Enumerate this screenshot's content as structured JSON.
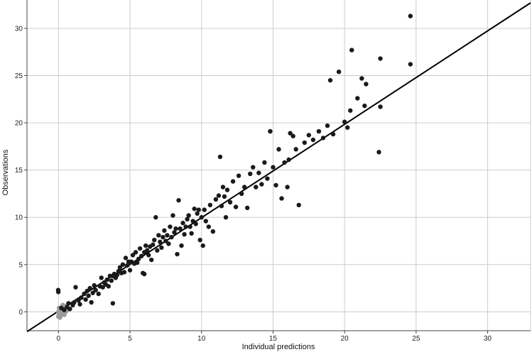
{
  "chart_data": {
    "type": "scatter",
    "title": "",
    "xlabel": "Individual predictions",
    "ylabel": "Observations",
    "xlim": [
      -2.2,
      33
    ],
    "ylim": [
      -2,
      33
    ],
    "xticks": [
      0,
      5,
      10,
      15,
      20,
      25,
      30
    ],
    "yticks": [
      0,
      5,
      10,
      15,
      20,
      25,
      30
    ],
    "grid": true,
    "identity_line": {
      "from": [
        -2.2,
        -2.1
      ],
      "to": [
        33,
        32.7
      ]
    },
    "colors": {
      "points": "#1a1a1a",
      "censored_points": "#9a9a9a",
      "grid": "#cccccc",
      "line": "#000000",
      "axis": "#444444"
    },
    "series": [
      {
        "values": [
          [
            -0.02,
            2.3
          ],
          [
            -0.01,
            2.1
          ],
          [
            0.2,
            0.4
          ],
          [
            0.4,
            0.2
          ],
          [
            0.6,
            0.5
          ],
          [
            0.7,
            0.9
          ],
          [
            0.8,
            0.3
          ],
          [
            1.0,
            0.7
          ],
          [
            1.1,
            1.0
          ],
          [
            1.2,
            2.6
          ],
          [
            1.4,
            1.2
          ],
          [
            1.5,
            0.8
          ],
          [
            1.6,
            1.5
          ],
          [
            1.8,
            1.9
          ],
          [
            1.9,
            1.3
          ],
          [
            2.0,
            2.2
          ],
          [
            2.1,
            1.7
          ],
          [
            2.2,
            2.5
          ],
          [
            2.3,
            1.0
          ],
          [
            2.4,
            2.0
          ],
          [
            2.5,
            2.8
          ],
          [
            2.6,
            2.3
          ],
          [
            2.8,
            1.9
          ],
          [
            2.9,
            2.7
          ],
          [
            3.0,
            3.6
          ],
          [
            3.1,
            2.6
          ],
          [
            3.2,
            3.1
          ],
          [
            3.3,
            2.9
          ],
          [
            3.4,
            3.4
          ],
          [
            3.5,
            2.7
          ],
          [
            3.6,
            3.8
          ],
          [
            3.7,
            3.3
          ],
          [
            3.8,
            3.8
          ],
          [
            3.8,
            0.9
          ],
          [
            3.9,
            4.0
          ],
          [
            4.0,
            3.6
          ],
          [
            4.1,
            3.9
          ],
          [
            4.2,
            4.3
          ],
          [
            4.3,
            4.7
          ],
          [
            4.4,
            4.1
          ],
          [
            4.5,
            5.0
          ],
          [
            4.6,
            4.2
          ],
          [
            4.7,
            5.7
          ],
          [
            4.8,
            4.9
          ],
          [
            4.9,
            5.3
          ],
          [
            5.0,
            4.4
          ],
          [
            5.1,
            5.3
          ],
          [
            5.2,
            6.0
          ],
          [
            5.3,
            5.1
          ],
          [
            5.4,
            6.3
          ],
          [
            5.5,
            5.2
          ],
          [
            5.6,
            5.6
          ],
          [
            5.7,
            6.7
          ],
          [
            5.8,
            5.9
          ],
          [
            5.9,
            4.1
          ],
          [
            6.0,
            4.0
          ],
          [
            6.0,
            6.3
          ],
          [
            6.1,
            7.0
          ],
          [
            6.2,
            6.5
          ],
          [
            6.3,
            6.0
          ],
          [
            6.4,
            6.9
          ],
          [
            6.5,
            5.5
          ],
          [
            6.6,
            7.1
          ],
          [
            6.7,
            7.6
          ],
          [
            6.8,
            10.0
          ],
          [
            6.9,
            6.5
          ],
          [
            7.0,
            8.1
          ],
          [
            7.1,
            7.4
          ],
          [
            7.2,
            6.8
          ],
          [
            7.3,
            7.9
          ],
          [
            7.4,
            8.6
          ],
          [
            7.5,
            7.5
          ],
          [
            7.6,
            8.1
          ],
          [
            7.7,
            7.2
          ],
          [
            7.8,
            9.0
          ],
          [
            7.9,
            7.9
          ],
          [
            8.0,
            10.2
          ],
          [
            8.1,
            8.4
          ],
          [
            8.2,
            8.8
          ],
          [
            8.3,
            6.1
          ],
          [
            8.4,
            11.8
          ],
          [
            8.5,
            8.8
          ],
          [
            8.6,
            7.0
          ],
          [
            8.7,
            9.4
          ],
          [
            8.8,
            8.2
          ],
          [
            8.9,
            9.0
          ],
          [
            9.0,
            9.8
          ],
          [
            9.1,
            10.2
          ],
          [
            9.2,
            9.0
          ],
          [
            9.3,
            8.3
          ],
          [
            9.4,
            9.6
          ],
          [
            9.5,
            10.9
          ],
          [
            9.6,
            9.3
          ],
          [
            9.7,
            10.4
          ],
          [
            9.8,
            10.8
          ],
          [
            9.9,
            7.6
          ],
          [
            10.0,
            10.0
          ],
          [
            10.1,
            7.0
          ],
          [
            10.2,
            10.8
          ],
          [
            10.3,
            9.6
          ],
          [
            10.5,
            9.0
          ],
          [
            10.6,
            11.3
          ],
          [
            10.8,
            8.5
          ],
          [
            11.0,
            11.9
          ],
          [
            11.2,
            12.3
          ],
          [
            11.3,
            16.4
          ],
          [
            11.4,
            11.2
          ],
          [
            11.5,
            13.2
          ],
          [
            11.6,
            12.2
          ],
          [
            11.7,
            10.0
          ],
          [
            11.8,
            12.9
          ],
          [
            12.0,
            11.6
          ],
          [
            12.2,
            13.8
          ],
          [
            12.4,
            11.1
          ],
          [
            12.6,
            14.4
          ],
          [
            12.8,
            12.5
          ],
          [
            13.0,
            13.2
          ],
          [
            13.2,
            11.0
          ],
          [
            13.4,
            14.6
          ],
          [
            13.6,
            15.3
          ],
          [
            13.8,
            13.2
          ],
          [
            14.0,
            14.7
          ],
          [
            14.2,
            13.5
          ],
          [
            14.4,
            15.8
          ],
          [
            14.6,
            14.1
          ],
          [
            14.8,
            19.1
          ],
          [
            15.0,
            15.3
          ],
          [
            15.2,
            13.4
          ],
          [
            15.4,
            17.2
          ],
          [
            15.6,
            12.0
          ],
          [
            15.8,
            15.8
          ],
          [
            16.0,
            13.2
          ],
          [
            16.1,
            16.1
          ],
          [
            16.2,
            18.9
          ],
          [
            16.4,
            18.6
          ],
          [
            16.6,
            17.2
          ],
          [
            16.8,
            11.3
          ],
          [
            17.2,
            17.9
          ],
          [
            17.5,
            18.7
          ],
          [
            17.8,
            18.2
          ],
          [
            18.2,
            19.1
          ],
          [
            18.5,
            18.4
          ],
          [
            18.8,
            19.7
          ],
          [
            19.0,
            24.5
          ],
          [
            19.2,
            18.8
          ],
          [
            19.6,
            25.4
          ],
          [
            20.0,
            20.1
          ],
          [
            20.2,
            19.5
          ],
          [
            20.4,
            21.3
          ],
          [
            20.5,
            27.7
          ],
          [
            20.9,
            22.6
          ],
          [
            21.2,
            24.7
          ],
          [
            21.5,
            24.1
          ],
          [
            21.4,
            21.8
          ],
          [
            22.4,
            16.9
          ],
          [
            22.5,
            26.8
          ],
          [
            22.5,
            21.7
          ],
          [
            24.6,
            31.3
          ],
          [
            24.6,
            26.2
          ]
        ]
      },
      {
        "values": [
          [
            0.0,
            0.0
          ],
          [
            0.05,
            -0.2
          ],
          [
            0.1,
            0.3
          ],
          [
            0.15,
            -0.4
          ],
          [
            0.2,
            0.1
          ],
          [
            0.25,
            -0.1
          ],
          [
            0.3,
            0.5
          ],
          [
            0.35,
            0.2
          ],
          [
            0.4,
            -0.3
          ],
          [
            0.45,
            0.4
          ],
          [
            0.5,
            0.0
          ],
          [
            0.55,
            0.6
          ],
          [
            0.6,
            0.2
          ],
          [
            0.0,
            -0.5
          ],
          [
            0.1,
            -0.6
          ],
          [
            0.3,
            0.7
          ],
          [
            0.05,
            0.4
          ]
        ]
      }
    ]
  }
}
